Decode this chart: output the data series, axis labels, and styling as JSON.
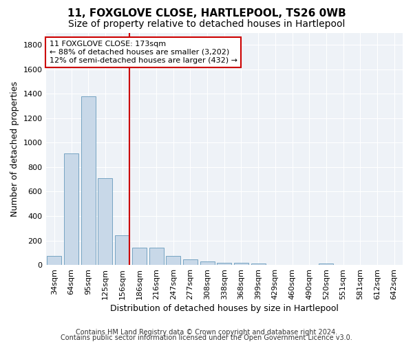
{
  "title": "11, FOXGLOVE CLOSE, HARTLEPOOL, TS26 0WB",
  "subtitle": "Size of property relative to detached houses in Hartlepool",
  "xlabel": "Distribution of detached houses by size in Hartlepool",
  "ylabel": "Number of detached properties",
  "categories": [
    "34sqm",
    "64sqm",
    "95sqm",
    "125sqm",
    "156sqm",
    "186sqm",
    "216sqm",
    "247sqm",
    "277sqm",
    "308sqm",
    "338sqm",
    "368sqm",
    "399sqm",
    "429sqm",
    "460sqm",
    "490sqm",
    "520sqm",
    "551sqm",
    "581sqm",
    "612sqm",
    "642sqm"
  ],
  "values": [
    75,
    910,
    1380,
    710,
    245,
    140,
    140,
    75,
    45,
    30,
    20,
    15,
    10,
    0,
    0,
    0,
    10,
    0,
    0,
    0,
    0
  ],
  "bar_color": "#c8d8e8",
  "bar_edge_color": "#6699bb",
  "red_line_color": "#cc0000",
  "annotation_line1": "11 FOXGLOVE CLOSE: 173sqm",
  "annotation_line2": "← 88% of detached houses are smaller (3,202)",
  "annotation_line3": "12% of semi-detached houses are larger (432) →",
  "annotation_box_color": "#ffffff",
  "annotation_box_edge": "#cc0000",
  "ylim": [
    0,
    1900
  ],
  "yticks": [
    0,
    200,
    400,
    600,
    800,
    1000,
    1200,
    1400,
    1600,
    1800
  ],
  "footer1": "Contains HM Land Registry data © Crown copyright and database right 2024.",
  "footer2": "Contains public sector information licensed under the Open Government Licence v3.0.",
  "fig_bg_color": "#ffffff",
  "plot_bg_color": "#eef2f7",
  "grid_color": "#ffffff",
  "title_fontsize": 11,
  "subtitle_fontsize": 10,
  "axis_label_fontsize": 9,
  "tick_fontsize": 8,
  "annotation_fontsize": 8,
  "footer_fontsize": 7,
  "red_line_x": 4.4
}
